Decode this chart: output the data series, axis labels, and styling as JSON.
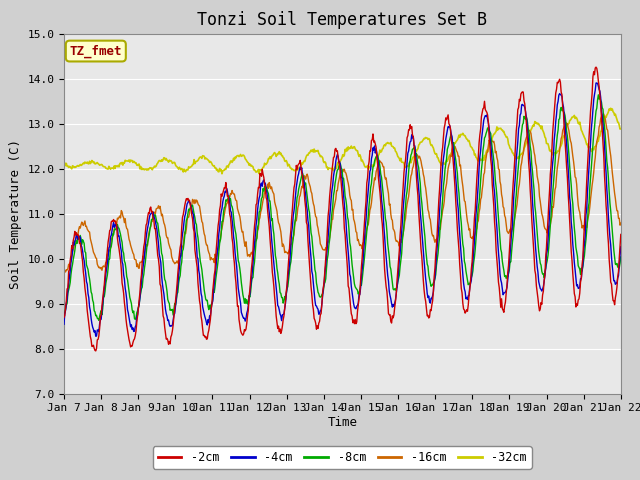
{
  "title": "Tonzi Soil Temperatures Set B",
  "xlabel": "Time",
  "ylabel": "Soil Temperature (C)",
  "ylim": [
    7.0,
    15.0
  ],
  "yticks": [
    7.0,
    8.0,
    9.0,
    10.0,
    11.0,
    12.0,
    13.0,
    14.0,
    15.0
  ],
  "colors": {
    "-2cm": "#cc0000",
    "-4cm": "#0000cc",
    "-8cm": "#00aa00",
    "-16cm": "#cc6600",
    "-32cm": "#cccc00"
  },
  "legend_labels": [
    "-2cm",
    "-4cm",
    "-8cm",
    "-16cm",
    "-32cm"
  ],
  "annotation_text": "TZ_fmet",
  "annotation_bg": "#ffffcc",
  "annotation_border": "#aaaa00",
  "annotation_text_color": "#990000",
  "fig_bg": "#d0d0d0",
  "plot_bg": "#e8e8e8",
  "grid_color": "#ffffff",
  "title_fontsize": 12,
  "axis_label_fontsize": 9,
  "tick_label_fontsize": 8,
  "xtick_labels": [
    "Jan 7",
    "Jan 8",
    "Jan 9",
    "Jan 10",
    "Jan 11",
    "Jan 12",
    "Jan 13",
    "Jan 14",
    "Jan 15",
    "Jan 16",
    "Jan 17",
    "Jan 18",
    "Jan 19",
    "Jan 20",
    "Jan 21",
    "Jan 22"
  ],
  "days": 15,
  "n_points": 720
}
